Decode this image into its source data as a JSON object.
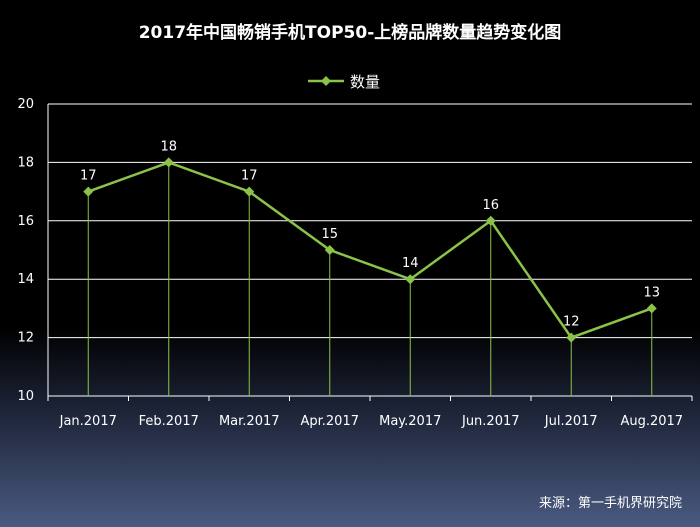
{
  "chart_data": {
    "type": "line",
    "title": "2017年中国畅销手机TOP50-上榜品牌数量趋势变化图",
    "categories": [
      "Jan.2017",
      "Feb.2017",
      "Mar.2017",
      "Apr.2017",
      "May.2017",
      "Jun.2017",
      "Jul.2017",
      "Aug.2017"
    ],
    "series": [
      {
        "name": "数量",
        "values": [
          17,
          18,
          17,
          15,
          14,
          16,
          12,
          13
        ]
      }
    ],
    "ylim": [
      10,
      20
    ],
    "yticks": [
      10,
      12,
      14,
      16,
      18,
      20
    ],
    "xlabel": "",
    "ylabel": "",
    "grid": true,
    "legend_position": "top-center",
    "data_labels": true
  },
  "source": "来源：第一手机界研究院",
  "colors": {
    "line": "#8bc34a",
    "grid": "#ffffff",
    "text": "#ffffff"
  }
}
